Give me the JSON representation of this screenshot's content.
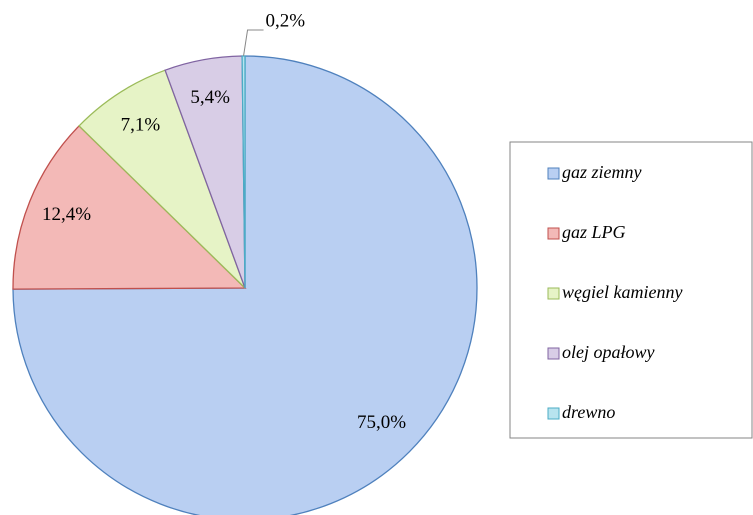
{
  "chart_data": {
    "type": "pie",
    "categories": [
      "gaz ziemny",
      "gaz LPG",
      "węgiel kamienny",
      "olej opałowy",
      "drewno"
    ],
    "values": [
      75.0,
      12.4,
      7.1,
      5.4,
      0.2
    ],
    "value_labels": [
      "75,0%",
      "12,4%",
      "7,1%",
      "5,4%",
      "0,2%"
    ],
    "colors": [
      "#b9cff2",
      "#f3b9b7",
      "#e6f3c6",
      "#d8cde6",
      "#b8e4ef"
    ],
    "edge_colors": [
      "#4f81bd",
      "#c0504d",
      "#9bbb59",
      "#8064a2",
      "#4bacc6"
    ],
    "legend": "right"
  }
}
